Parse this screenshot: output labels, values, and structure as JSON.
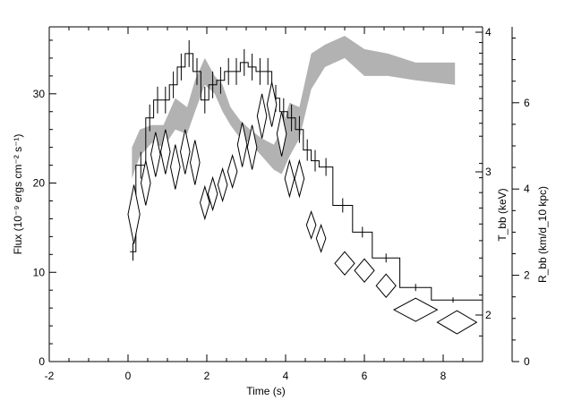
{
  "chart_data": {
    "type": "step-line-with-band-and-diamonds",
    "xlabel": "Time (s)",
    "ylabel_left": "Flux (10⁻⁹ ergs cm⁻² s⁻¹)",
    "ylabel_right_inner": "T_bb (keV)",
    "ylabel_right_outer": "R_bb (km/d_10 kpc)",
    "xlim": [
      -2,
      9
    ],
    "ylim_left": [
      0,
      37.5
    ],
    "x_ticks": [
      "-2",
      "0",
      "2",
      "4",
      "6",
      "8"
    ],
    "y_left_ticks": [
      "0",
      "10",
      "20",
      "30"
    ],
    "y_right_inner_ticks": [
      "2",
      "3",
      "4"
    ],
    "y_right_outer_ticks": [
      "0",
      "2",
      "4",
      "6"
    ],
    "series": [
      {
        "type": "step",
        "bins": [
          {
            "x0": 0.05,
            "x1": 0.2,
            "y": 12.3,
            "err": 1.0
          },
          {
            "x0": 0.2,
            "x1": 0.45,
            "y": 22.0,
            "err": 1.5
          },
          {
            "x0": 0.45,
            "x1": 0.65,
            "y": 27.3,
            "err": 1.5
          },
          {
            "x0": 0.65,
            "x1": 0.85,
            "y": 29.3,
            "err": 1.5
          },
          {
            "x0": 0.85,
            "x1": 1.05,
            "y": 29.3,
            "err": 1.5
          },
          {
            "x0": 1.05,
            "x1": 1.25,
            "y": 31.0,
            "err": 1.5
          },
          {
            "x0": 1.25,
            "x1": 1.45,
            "y": 33.0,
            "err": 1.5
          },
          {
            "x0": 1.45,
            "x1": 1.65,
            "y": 34.5,
            "err": 1.5
          },
          {
            "x0": 1.65,
            "x1": 1.85,
            "y": 32.5,
            "err": 1.5
          },
          {
            "x0": 1.85,
            "x1": 2.05,
            "y": 29.3,
            "err": 1.5
          },
          {
            "x0": 2.05,
            "x1": 2.25,
            "y": 31.0,
            "err": 1.5
          },
          {
            "x0": 2.25,
            "x1": 2.45,
            "y": 31.5,
            "err": 1.5
          },
          {
            "x0": 2.45,
            "x1": 2.65,
            "y": 32.5,
            "err": 1.5
          },
          {
            "x0": 2.65,
            "x1": 2.85,
            "y": 32.5,
            "err": 1.5
          },
          {
            "x0": 2.85,
            "x1": 3.05,
            "y": 33.5,
            "err": 1.5
          },
          {
            "x0": 3.05,
            "x1": 3.25,
            "y": 33.0,
            "err": 1.5
          },
          {
            "x0": 3.25,
            "x1": 3.45,
            "y": 32.5,
            "err": 1.5
          },
          {
            "x0": 3.45,
            "x1": 3.65,
            "y": 32.5,
            "err": 1.5
          },
          {
            "x0": 3.65,
            "x1": 3.85,
            "y": 29.5,
            "err": 1.5
          },
          {
            "x0": 3.85,
            "x1": 4.05,
            "y": 28.0,
            "err": 1.5
          },
          {
            "x0": 4.05,
            "x1": 4.25,
            "y": 27.3,
            "err": 1.5
          },
          {
            "x0": 4.25,
            "x1": 4.45,
            "y": 26.0,
            "err": 1.5
          },
          {
            "x0": 4.45,
            "x1": 4.65,
            "y": 23.7,
            "err": 1.2
          },
          {
            "x0": 4.65,
            "x1": 4.85,
            "y": 22.5,
            "err": 1.2
          },
          {
            "x0": 4.85,
            "x1": 5.2,
            "y": 21.8,
            "err": 1.0
          },
          {
            "x0": 5.2,
            "x1": 5.7,
            "y": 17.5,
            "err": 0.8
          },
          {
            "x0": 5.7,
            "x1": 6.2,
            "y": 14.5,
            "err": 0.6
          },
          {
            "x0": 6.2,
            "x1": 6.9,
            "y": 11.6,
            "err": 0.5
          },
          {
            "x0": 6.9,
            "x1": 7.7,
            "y": 8.3,
            "err": 0.4
          },
          {
            "x0": 7.7,
            "x1": 8.8,
            "y": 6.9,
            "err": 0.3
          },
          {
            "x0": 8.8,
            "x1": 9.0,
            "y": 6.9,
            "err": 0.0
          }
        ]
      },
      {
        "type": "band",
        "x": [
          0.1,
          0.3,
          0.6,
          0.9,
          1.2,
          1.5,
          1.7,
          1.95,
          2.2,
          2.4,
          2.6,
          2.85,
          3.1,
          3.4,
          3.7,
          3.9,
          4.1,
          4.35,
          4.65,
          5.0,
          5.5,
          6.0,
          6.6,
          7.3,
          8.3
        ],
        "upper": [
          24.0,
          26.0,
          26.5,
          26.5,
          29.5,
          28.5,
          31.5,
          34.0,
          32.0,
          31.0,
          28.5,
          27.0,
          26.0,
          25.0,
          24.3,
          26.0,
          29.0,
          28.5,
          34.5,
          35.5,
          36.5,
          35.0,
          34.5,
          33.5,
          33.5
        ],
        "lower": [
          20.5,
          23.0,
          24.5,
          24.0,
          26.0,
          25.5,
          28.0,
          31.0,
          30.0,
          28.0,
          26.5,
          25.0,
          24.5,
          23.0,
          21.5,
          21.0,
          23.0,
          25.0,
          30.5,
          33.0,
          34.0,
          32.0,
          32.0,
          31.5,
          31.0
        ]
      },
      {
        "type": "diamonds",
        "points": [
          {
            "x": 0.15,
            "y": 16.5,
            "w": 0.15,
            "h": 3.3
          },
          {
            "x": 0.45,
            "y": 20.0,
            "w": 0.12,
            "h": 2.5
          },
          {
            "x": 0.7,
            "y": 23.2,
            "w": 0.12,
            "h": 2.5
          },
          {
            "x": 0.95,
            "y": 23.5,
            "w": 0.12,
            "h": 2.5
          },
          {
            "x": 1.2,
            "y": 21.8,
            "w": 0.12,
            "h": 2.5
          },
          {
            "x": 1.45,
            "y": 23.5,
            "w": 0.12,
            "h": 2.5
          },
          {
            "x": 1.7,
            "y": 22.3,
            "w": 0.12,
            "h": 2.5
          },
          {
            "x": 1.95,
            "y": 17.8,
            "w": 0.12,
            "h": 1.8
          },
          {
            "x": 2.15,
            "y": 18.8,
            "w": 0.12,
            "h": 1.8
          },
          {
            "x": 2.4,
            "y": 19.8,
            "w": 0.12,
            "h": 1.8
          },
          {
            "x": 2.65,
            "y": 21.3,
            "w": 0.12,
            "h": 1.8
          },
          {
            "x": 2.9,
            "y": 24.3,
            "w": 0.12,
            "h": 2.5
          },
          {
            "x": 3.15,
            "y": 24.0,
            "w": 0.12,
            "h": 2.5
          },
          {
            "x": 3.4,
            "y": 27.5,
            "w": 0.12,
            "h": 2.5
          },
          {
            "x": 3.65,
            "y": 28.8,
            "w": 0.12,
            "h": 2.5
          },
          {
            "x": 3.9,
            "y": 25.5,
            "w": 0.12,
            "h": 2.5
          },
          {
            "x": 4.1,
            "y": 20.5,
            "w": 0.12,
            "h": 2.0
          },
          {
            "x": 4.35,
            "y": 20.5,
            "w": 0.12,
            "h": 2.0
          },
          {
            "x": 4.65,
            "y": 15.3,
            "w": 0.12,
            "h": 1.5
          },
          {
            "x": 4.9,
            "y": 13.8,
            "w": 0.12,
            "h": 1.5
          },
          {
            "x": 5.5,
            "y": 11.0,
            "w": 0.25,
            "h": 1.3
          },
          {
            "x": 6.0,
            "y": 10.2,
            "w": 0.25,
            "h": 1.3
          },
          {
            "x": 6.55,
            "y": 8.5,
            "w": 0.25,
            "h": 1.3
          },
          {
            "x": 7.3,
            "y": 5.8,
            "w": 0.55,
            "h": 1.3
          },
          {
            "x": 8.35,
            "y": 4.4,
            "w": 0.5,
            "h": 1.3
          }
        ]
      }
    ]
  }
}
